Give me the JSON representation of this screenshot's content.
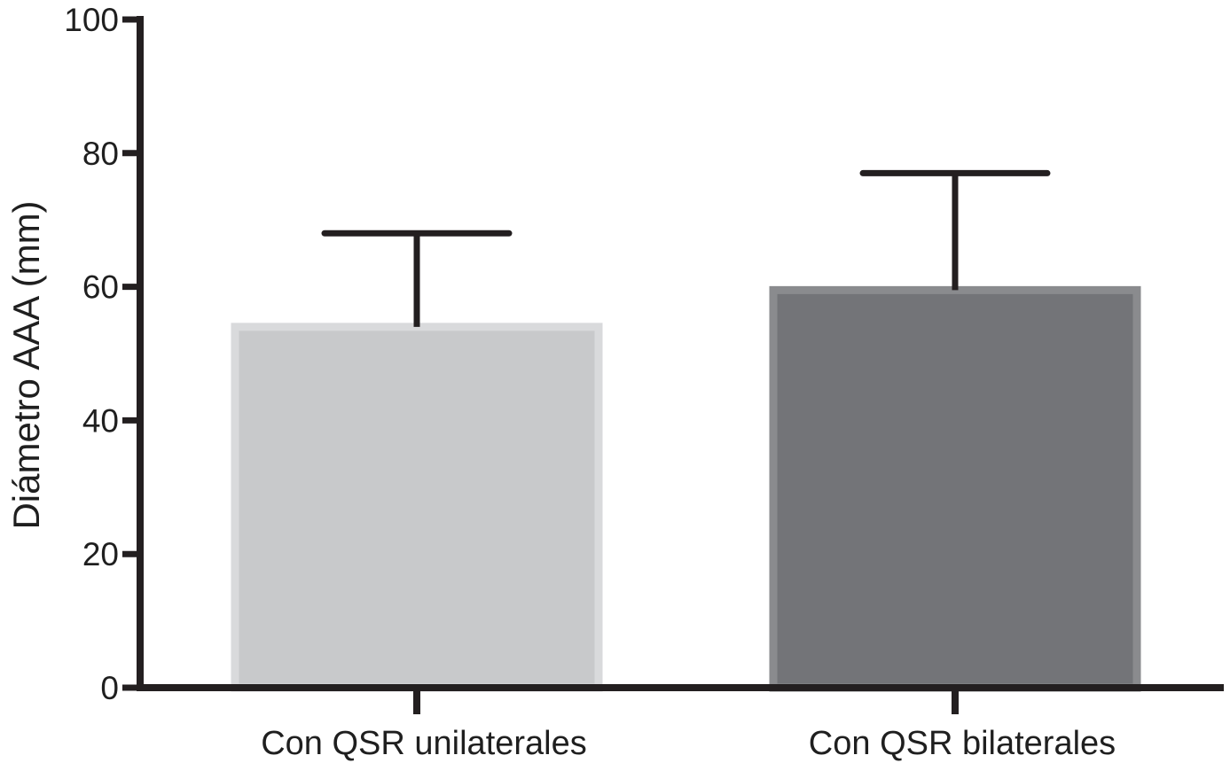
{
  "chart_data": {
    "type": "bar",
    "title": "",
    "xlabel": "",
    "ylabel": "Diámetro AAA (mm)",
    "ylim": [
      0,
      100
    ],
    "yticks": [
      0,
      20,
      40,
      60,
      80,
      100
    ],
    "grid": false,
    "categories": [
      "Con QSR unilaterales",
      "Con QSR bilaterales"
    ],
    "values": [
      54,
      59.5
    ],
    "error_upper": [
      68,
      77
    ],
    "bar_colors": [
      "#c8c9cb",
      "#737478"
    ],
    "bar_edge_colors": [
      "#d9dadc",
      "#8a8b8e"
    ],
    "axis_color": "#231f20"
  }
}
